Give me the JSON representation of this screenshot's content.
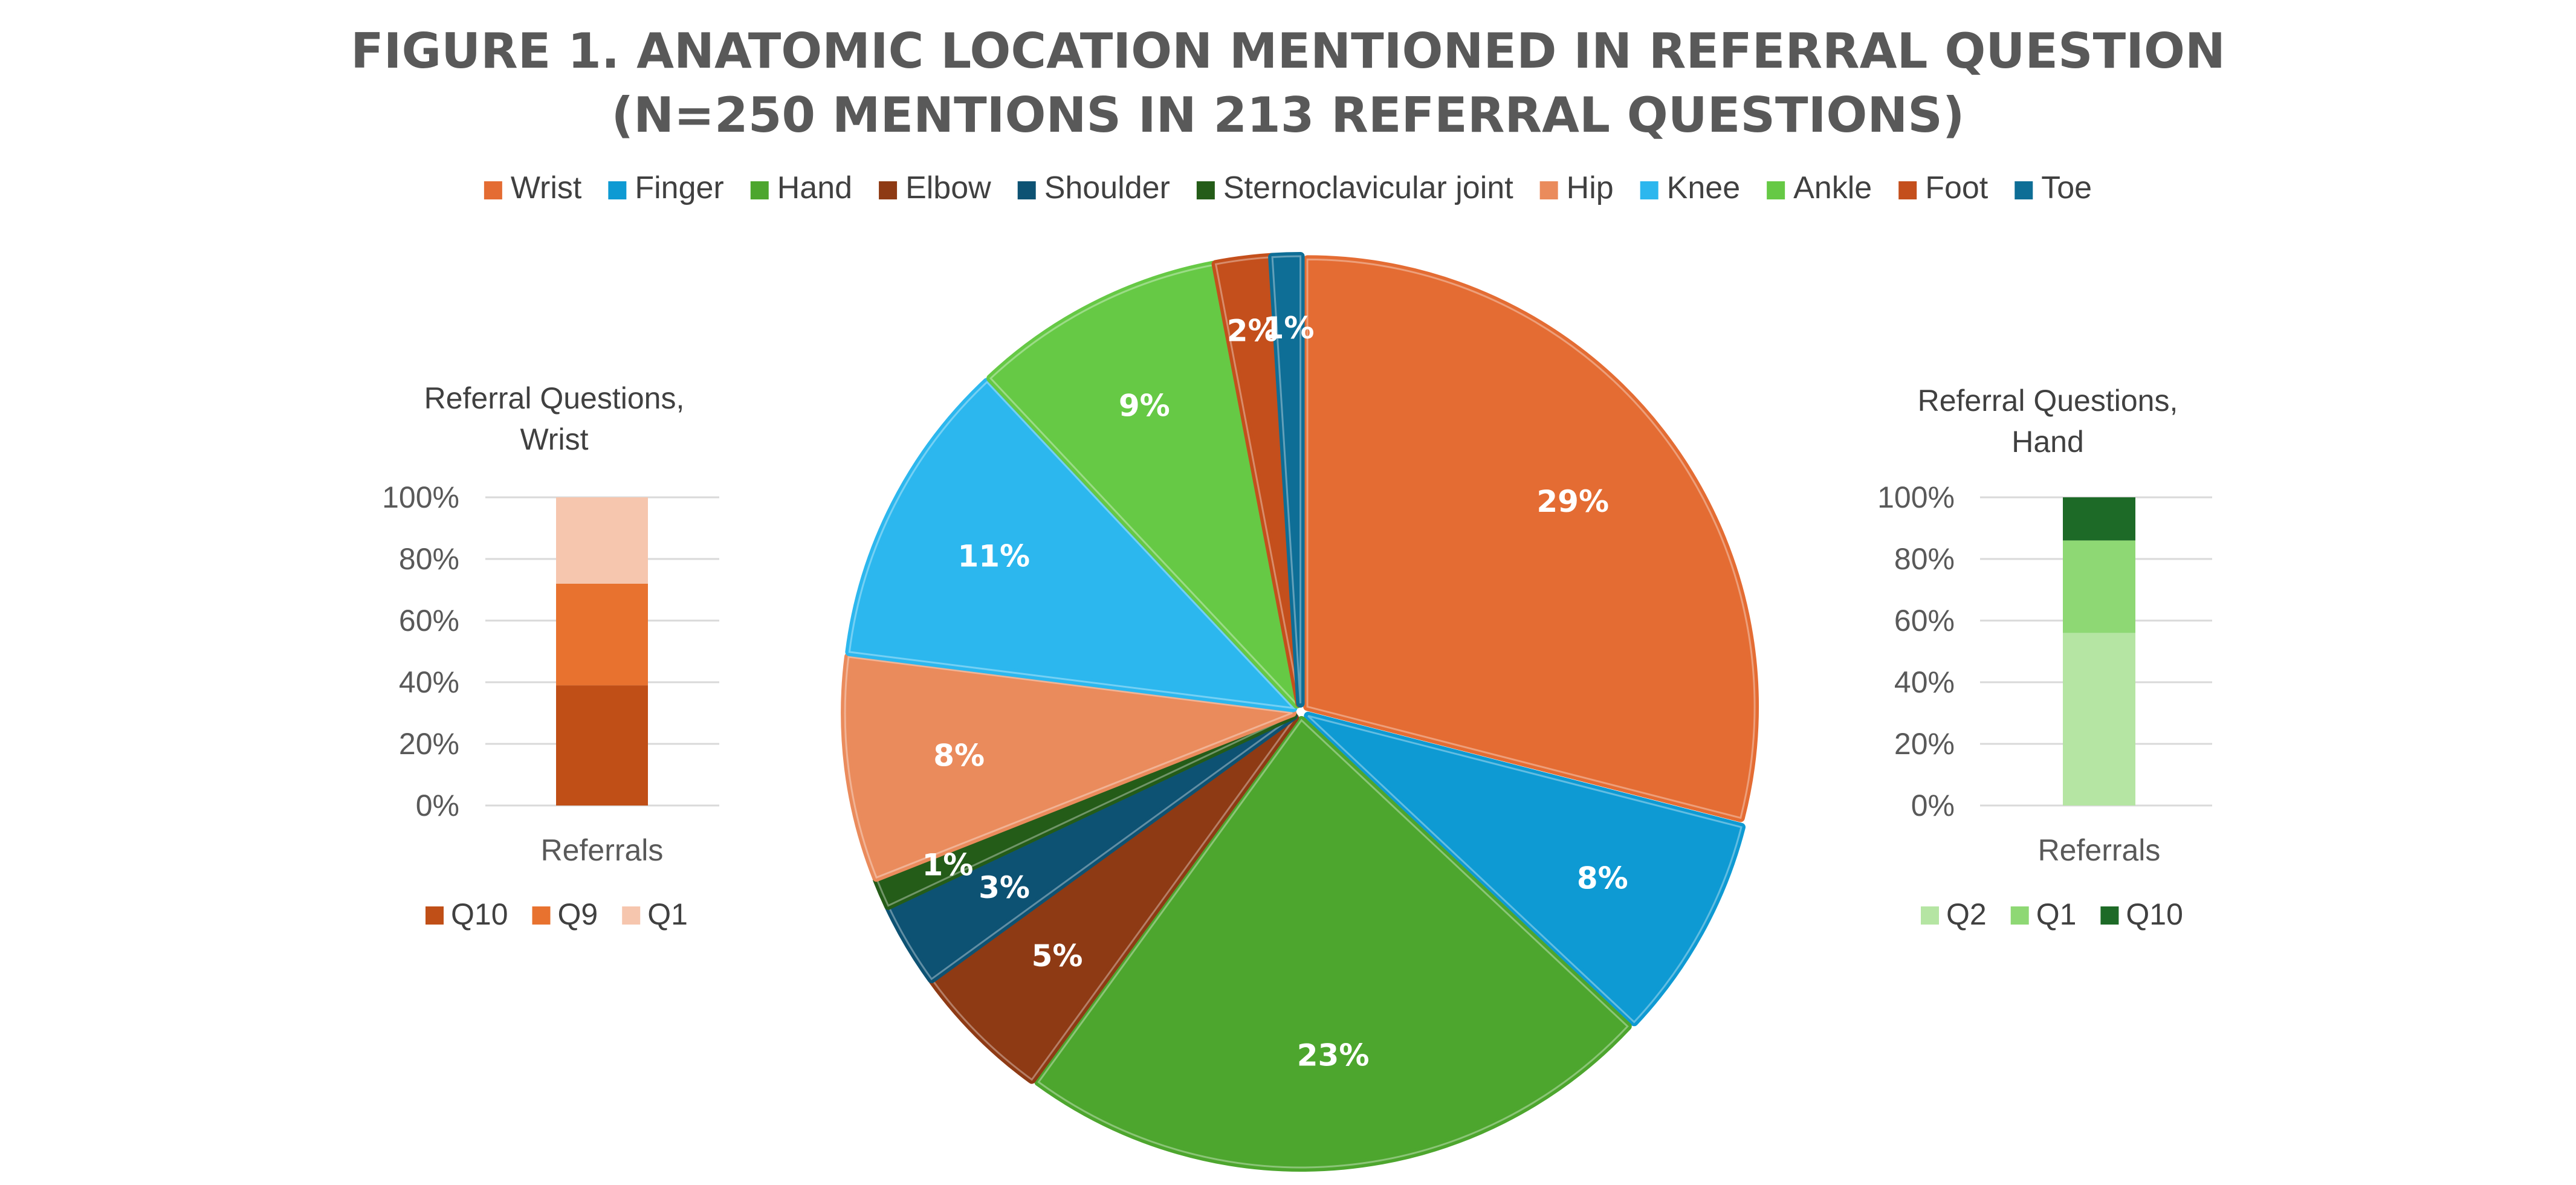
{
  "title_line1": "FIGURE 1. ANATOMIC LOCATION MENTIONED IN REFERRAL QUESTION",
  "title_line2": "(N=250 MENTIONS IN 213 REFERRAL QUESTIONS)",
  "chart_data": [
    {
      "type": "pie",
      "title": "FIGURE 1. ANATOMIC LOCATION MENTIONED IN REFERRAL QUESTION (N=250 MENTIONS IN 213 REFERRAL QUESTIONS)",
      "legend_position": "top",
      "categories": [
        "Wrist",
        "Finger",
        "Hand",
        "Elbow",
        "Shoulder",
        "Sternoclavicular joint",
        "Hip",
        "Knee",
        "Ankle",
        "Foot",
        "Toe"
      ],
      "values": [
        29,
        8,
        23,
        5,
        3,
        1,
        8,
        11,
        9,
        2,
        1
      ],
      "labels": [
        "29%",
        "8%",
        "23%",
        "5%",
        "3%",
        "1%",
        "8%",
        "11%",
        "9%",
        "2%",
        "1%"
      ],
      "colors": [
        "#E46C33",
        "#0E9AD3",
        "#4DA62E",
        "#8E3A14",
        "#0D5273",
        "#245C18",
        "#EA8B5C",
        "#2CB7EE",
        "#66C945",
        "#C44F1C",
        "#0E6E96"
      ]
    },
    {
      "type": "bar",
      "stacked": true,
      "title": "Referral Questions, Wrist",
      "title_lines": [
        "Referral Questions,",
        "Wrist"
      ],
      "categories": [
        "Referrals"
      ],
      "xlabel": "Referrals",
      "ylim": [
        0,
        100
      ],
      "yticks": [
        "0%",
        "20%",
        "40%",
        "60%",
        "80%",
        "100%"
      ],
      "legend_position": "bottom",
      "series": [
        {
          "name": "Q10",
          "values": [
            39
          ],
          "color": "#C04F17"
        },
        {
          "name": "Q9",
          "values": [
            33
          ],
          "color": "#E8722F"
        },
        {
          "name": "Q1",
          "values": [
            28
          ],
          "color": "#F6C6AE"
        }
      ]
    },
    {
      "type": "bar",
      "stacked": true,
      "title": "Referral Questions, Hand",
      "title_lines": [
        "Referral Questions,",
        "Hand"
      ],
      "categories": [
        "Referrals"
      ],
      "xlabel": "Referrals",
      "ylim": [
        0,
        100
      ],
      "yticks": [
        "0%",
        "20%",
        "40%",
        "60%",
        "80%",
        "100%"
      ],
      "legend_position": "bottom",
      "series": [
        {
          "name": "Q2",
          "values": [
            56
          ],
          "color": "#B5E5A3"
        },
        {
          "name": "Q1",
          "values": [
            30
          ],
          "color": "#8ED874"
        },
        {
          "name": "Q10",
          "values": [
            14
          ],
          "color": "#1D6A27"
        }
      ]
    }
  ]
}
